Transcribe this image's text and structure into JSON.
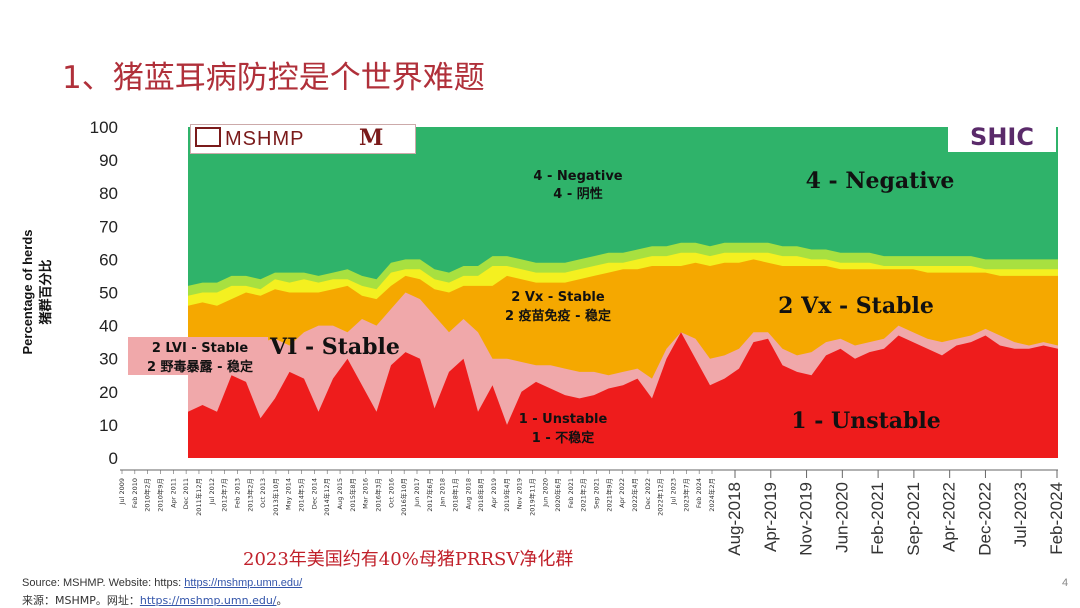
{
  "slide": {
    "title": "1、猪蓝耳病防控是个世界难题",
    "subtitle": "2023年美国约有40%母猪PRRSV净化群",
    "source_en_prefix": "Source: MSHMP. Website: https: ",
    "source_en_link": "https://mshmp.umn.edu/",
    "source_cn_prefix": "来源：MSHMP。网址：",
    "source_cn_link": "https://mshmp.umn.edu/",
    "source_cn_suffix": "。",
    "page_number": "4",
    "logo_left_text": "MSHMP",
    "logo_left_mark": "M",
    "logo_right_text": "SHIC"
  },
  "chart_data": {
    "type": "area",
    "stacked": true,
    "ylabel": "Percentage of herds",
    "ylabel_cn": "猪群百分比",
    "ylim": [
      0,
      100
    ],
    "yticks": [
      0,
      10,
      20,
      30,
      40,
      50,
      60,
      70,
      80,
      90,
      100
    ],
    "x_left_labels": [
      "Jul 2009",
      "Feb 2010",
      "2010年2月",
      "2010年9月",
      "Apr 2011",
      "Dec 2011",
      "2011年12月",
      "Jul 2012",
      "2012年7月",
      "Feb 2013",
      "2013年2月",
      "Oct 2013",
      "2013年10月",
      "May 2014",
      "2014年5月",
      "Dec 2014",
      "2014年12月",
      "Aug 2015",
      "2015年8月",
      "Mar 2016",
      "2016年3月",
      "Oct 2016",
      "2016年10月",
      "Jun 2017",
      "2017年6月",
      "Jan 2018",
      "2018年1月",
      "Aug 2018",
      "2018年8月",
      "Apr 2019",
      "2019年4月",
      "Nov 2019",
      "2019年11月",
      "Jun 2020",
      "2020年6月",
      "Feb 2021",
      "2021年2月",
      "Sep 2021",
      "2021年9月",
      "Apr 2022",
      "2022年4月",
      "Dec 2022",
      "2022年12月",
      "Jul 2023",
      "2023年7月",
      "Feb 2024",
      "2024年2月"
    ],
    "x_right_labels": [
      "Aug-2018",
      "Apr-2019",
      "Nov-2019",
      "Jun-2020",
      "Feb-2021",
      "Sep-2021",
      "Apr-2022",
      "Dec-2022",
      "Jul-2023",
      "Feb-2024"
    ],
    "colors": {
      "unstable": "#ee1c1c",
      "lvi_stable": "#f0a8aa",
      "vx_stable": "#f5a800",
      "band_yellow": "#f4f020",
      "band_lightgreen": "#a8e040",
      "negative": "#2fb36a"
    },
    "annotations": {
      "negative_left_en": "4 - Negative",
      "negative_left_cn": "4 - 阴性",
      "negative_right": "4 - Negative",
      "vx_left_en": "2 Vx - Stable",
      "vx_left_cn": "2 疫苗免疫 - 稳定",
      "vx_right": "2 Vx - Stable",
      "lvi_en": "2 LVI - Stable",
      "lvi_cn": "2 野毒暴露 - 稳定",
      "lvi_big": "VI - Stable",
      "unstable_left_en": "1 - Unstable",
      "unstable_left_cn": "1 - 不稳定",
      "unstable_right": "1 - Unstable"
    },
    "series": [
      {
        "name": "1 - Unstable",
        "values": [
          14,
          16,
          14,
          25,
          23,
          12,
          18,
          26,
          24,
          14,
          24,
          30,
          22,
          14,
          28,
          32,
          30,
          15,
          26,
          30,
          14,
          22,
          10,
          20,
          23,
          21,
          19,
          18,
          19,
          21,
          22,
          24,
          18,
          30,
          38,
          30,
          22,
          24,
          27,
          35,
          36,
          28,
          26,
          25,
          31,
          33,
          30,
          32,
          33,
          37,
          35,
          33,
          31,
          34,
          35,
          37,
          34,
          33,
          33,
          34,
          33
        ]
      },
      {
        "name": "2 LVI - Stable",
        "values": [
          32,
          30,
          31,
          32,
          35,
          35,
          36,
          34,
          38,
          40,
          40,
          38,
          42,
          40,
          45,
          50,
          48,
          43,
          38,
          42,
          38,
          30,
          30,
          29,
          28,
          28,
          27,
          26,
          26,
          25,
          26,
          27,
          24,
          33,
          38,
          36,
          30,
          31,
          33,
          38,
          38,
          33,
          31,
          32,
          35,
          36,
          34,
          35,
          36,
          40,
          38,
          36,
          35,
          36,
          37,
          39,
          37,
          35,
          34,
          35,
          34
        ]
      },
      {
        "name": "2 Vx - Stable",
        "values": [
          46,
          47,
          46,
          48,
          50,
          49,
          51,
          50,
          50,
          50,
          51,
          52,
          49,
          48,
          52,
          55,
          54,
          51,
          50,
          52,
          52,
          52,
          55,
          54,
          53,
          53,
          53,
          54,
          55,
          56,
          57,
          57,
          58,
          58,
          58,
          59,
          58,
          59,
          59,
          60,
          59,
          58,
          58,
          58,
          58,
          57,
          57,
          57,
          57,
          57,
          57,
          56,
          56,
          56,
          56,
          56,
          55,
          55,
          55,
          55,
          55
        ]
      },
      {
        "name": "Yellow band",
        "values": [
          49,
          50,
          50,
          52,
          52,
          51,
          54,
          53,
          54,
          53,
          54,
          54,
          52,
          51,
          56,
          57,
          57,
          54,
          53,
          55,
          55,
          58,
          58,
          57,
          56,
          56,
          56,
          57,
          58,
          59,
          59,
          60,
          61,
          61,
          62,
          62,
          61,
          62,
          62,
          62,
          62,
          61,
          61,
          60,
          60,
          59,
          59,
          59,
          58,
          58,
          58,
          58,
          58,
          58,
          58,
          57,
          57,
          57,
          57,
          57,
          57
        ]
      },
      {
        "name": "Light green band",
        "values": [
          52,
          53,
          53,
          55,
          55,
          54,
          56,
          56,
          56,
          55,
          56,
          57,
          55,
          54,
          59,
          60,
          60,
          57,
          56,
          58,
          58,
          61,
          61,
          60,
          59,
          59,
          59,
          60,
          61,
          62,
          62,
          63,
          64,
          64,
          65,
          65,
          64,
          65,
          65,
          65,
          65,
          64,
          64,
          63,
          63,
          62,
          62,
          62,
          61,
          61,
          61,
          61,
          61,
          61,
          61,
          60,
          60,
          60,
          60,
          60,
          60
        ]
      },
      {
        "name": "4 - Negative",
        "values": [
          100,
          100,
          100,
          100,
          100,
          100,
          100,
          100,
          100,
          100,
          100,
          100,
          100,
          100,
          100,
          100,
          100,
          100,
          100,
          100,
          100,
          100,
          100,
          100,
          100,
          100,
          100,
          100,
          100,
          100,
          100,
          100,
          100,
          100,
          100,
          100,
          100,
          100,
          100,
          100,
          100,
          100,
          100,
          100,
          100,
          100,
          100,
          100,
          100,
          100,
          100,
          100,
          100,
          100,
          100,
          100,
          100,
          100,
          100,
          100,
          100
        ]
      }
    ]
  }
}
